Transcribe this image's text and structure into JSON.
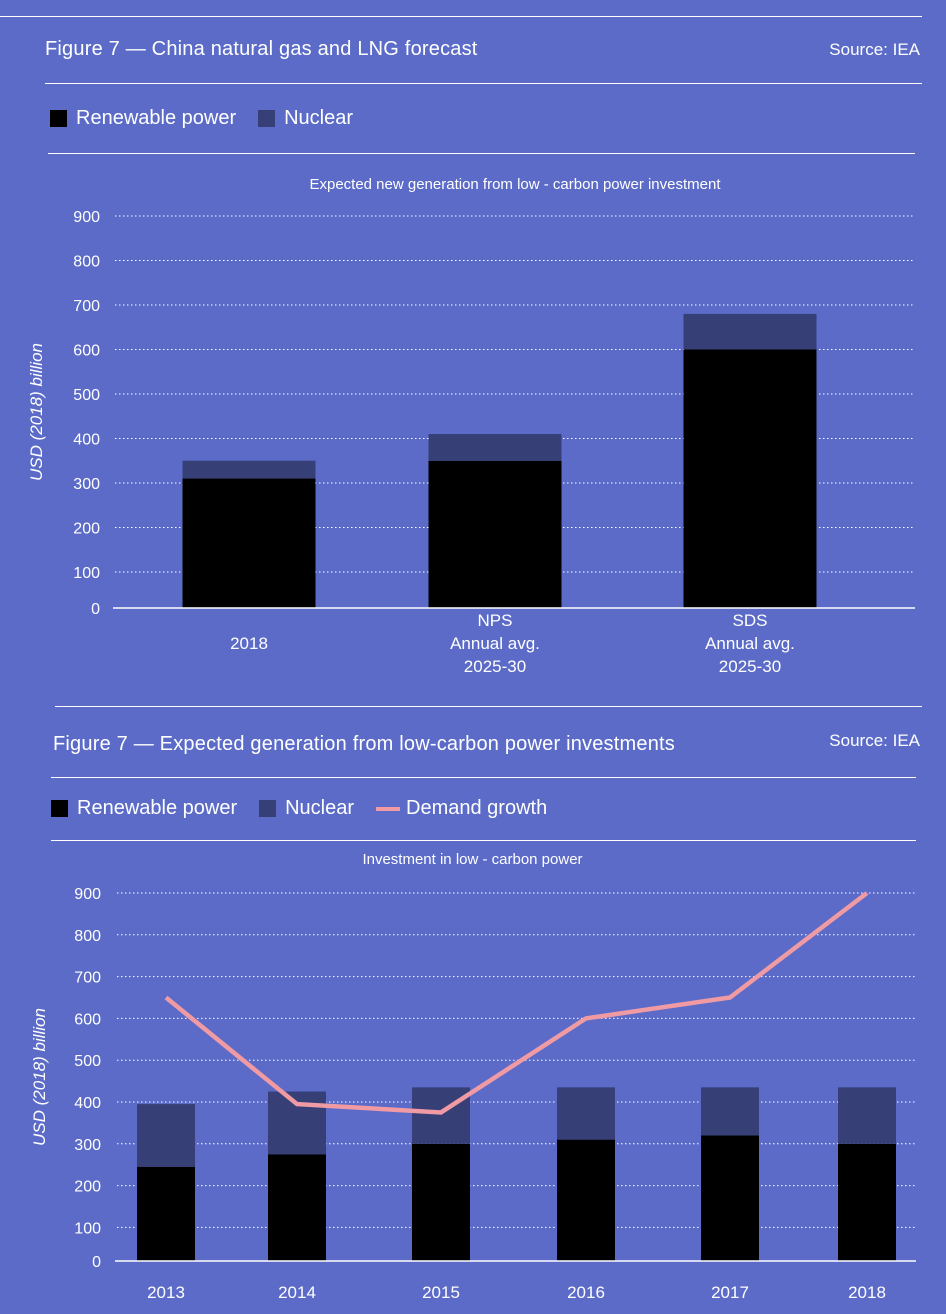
{
  "colors": {
    "background": "#5B6BC7",
    "renewable": "#000000",
    "nuclear": "#373F77",
    "demand": "#F09AA3",
    "text": "#FFFFFF"
  },
  "chart_data": [
    {
      "type": "bar",
      "stacked": true,
      "title": "Figure 7 — China natural gas and LNG forecast",
      "source": "Source: IEA",
      "subtitle": "Expected new generation  from low - carbon power investment",
      "ylabel": "USD (2018) billion",
      "xlabel": "",
      "ylim": [
        0,
        900
      ],
      "yticks": [
        0,
        100,
        200,
        300,
        400,
        500,
        600,
        700,
        800,
        900
      ],
      "grid": true,
      "legend_position": "top-left",
      "legend": [
        {
          "name": "Renewable power",
          "kind": "box",
          "color_key": "renewable"
        },
        {
          "name": "Nuclear",
          "kind": "box",
          "color_key": "nuclear"
        }
      ],
      "categories": [
        [
          "2018"
        ],
        [
          "NPS",
          "Annual avg.",
          "2025-30"
        ],
        [
          "SDS",
          "Annual avg.",
          "2025-30"
        ]
      ],
      "series": [
        {
          "name": "Renewable power",
          "values": [
            310,
            350,
            600
          ]
        },
        {
          "name": "Nuclear",
          "values": [
            40,
            60,
            80
          ]
        }
      ]
    },
    {
      "type": "bar",
      "stacked": true,
      "title": "Figure 7 — Expected generation from low-carbon power investments",
      "source": "Source: IEA",
      "subtitle": "Investment in low - carbon power",
      "ylabel": "USD (2018) billion",
      "xlabel": "",
      "ylim": [
        0,
        900
      ],
      "yticks": [
        0,
        100,
        200,
        300,
        400,
        500,
        600,
        700,
        800,
        900
      ],
      "grid": true,
      "legend_position": "top-left",
      "legend": [
        {
          "name": "Renewable power",
          "kind": "box",
          "color_key": "renewable"
        },
        {
          "name": "Nuclear",
          "kind": "box",
          "color_key": "nuclear"
        },
        {
          "name": "Demand growth",
          "kind": "line",
          "color_key": "demand"
        }
      ],
      "categories": [
        [
          "2013"
        ],
        [
          "2014"
        ],
        [
          "2015"
        ],
        [
          "2016"
        ],
        [
          "2017"
        ],
        [
          "2018"
        ]
      ],
      "series": [
        {
          "name": "Renewable power",
          "values": [
            245,
            275,
            300,
            310,
            320,
            300
          ]
        },
        {
          "name": "Nuclear",
          "values": [
            150,
            150,
            135,
            125,
            115,
            135
          ]
        }
      ],
      "line_series": {
        "name": "Demand growth",
        "values": [
          650,
          395,
          375,
          600,
          650,
          900
        ]
      }
    }
  ]
}
